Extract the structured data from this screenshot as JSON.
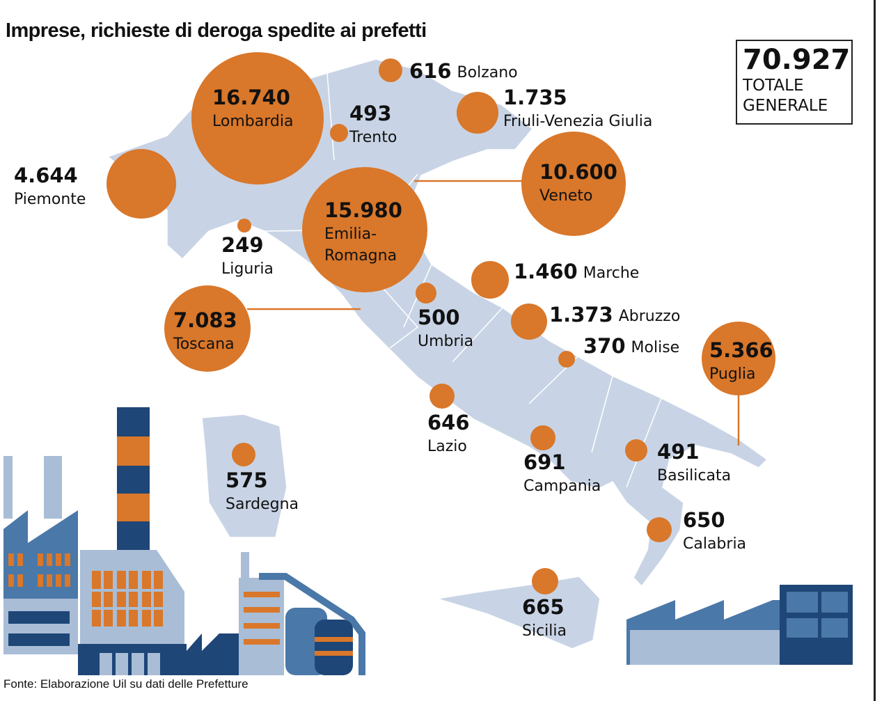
{
  "title": "Imprese, richieste di deroga spedite ai prefetti",
  "total": {
    "value": "70.927",
    "label_line1": "TOTALE",
    "label_line2": "GENERALE"
  },
  "footer": "Fonte: Elaborazione Uil su dati delle Prefetture",
  "colors": {
    "bubble": "#d9772a",
    "map": "#c8d4e5",
    "dark_blue": "#1e4677",
    "mid_blue": "#4a78a8",
    "light_blue": "#a9bdd6"
  },
  "regions": [
    {
      "name": "Lombardia",
      "value": "16.740"
    },
    {
      "name": "Bolzano",
      "value": "616"
    },
    {
      "name": "Trento",
      "value": "493"
    },
    {
      "name": "Friuli-Venezia Giulia",
      "value": "1.735"
    },
    {
      "name": "Piemonte",
      "value": "4.644"
    },
    {
      "name": "Veneto",
      "value": "10.600"
    },
    {
      "name": "Emilia-",
      "name2": "Romagna",
      "value": "15.980"
    },
    {
      "name": "Liguria",
      "value": "249"
    },
    {
      "name": "Marche",
      "value": "1.460"
    },
    {
      "name": "Toscana",
      "value": "7.083"
    },
    {
      "name": "Umbria",
      "value": "500"
    },
    {
      "name": "Abruzzo",
      "value": "1.373"
    },
    {
      "name": "Molise",
      "value": "370"
    },
    {
      "name": "Puglia",
      "value": "5.366"
    },
    {
      "name": "Lazio",
      "value": "646"
    },
    {
      "name": "Sardegna",
      "value": "575"
    },
    {
      "name": "Campania",
      "value": "691"
    },
    {
      "name": "Basilicata",
      "value": "491"
    },
    {
      "name": "Calabria",
      "value": "650"
    },
    {
      "name": "Sicilia",
      "value": "665"
    }
  ]
}
